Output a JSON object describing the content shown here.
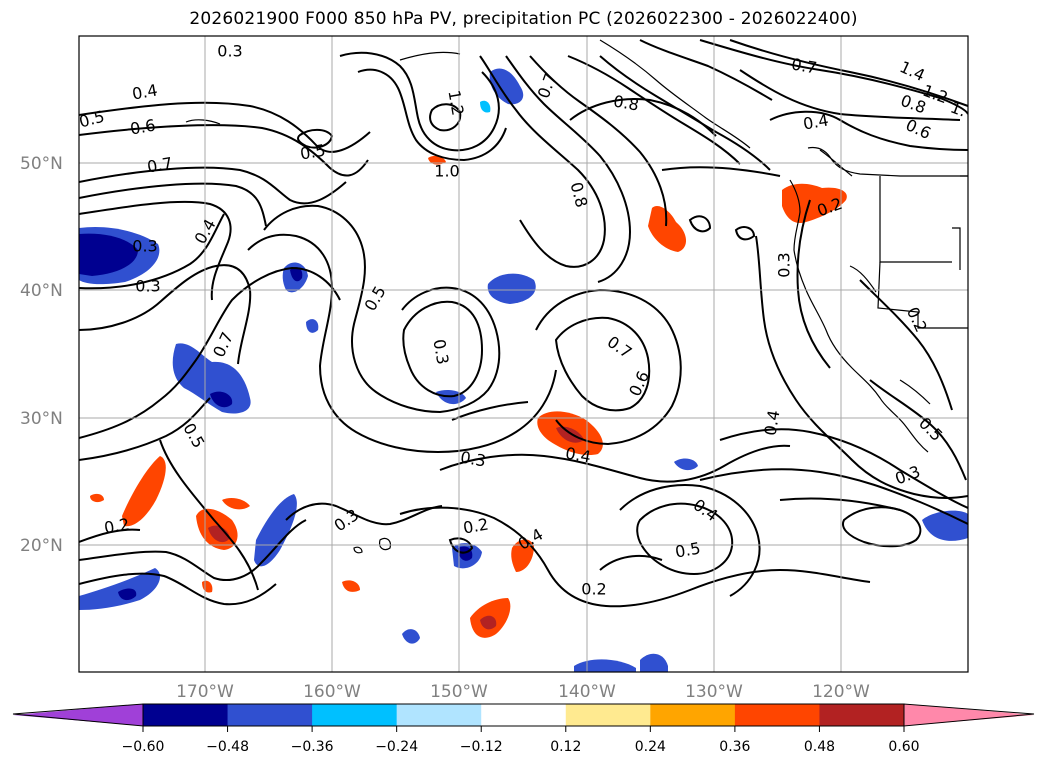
{
  "title": "2026021900 F000 850 hPa PV, precipitation PC (2026022300 - 2026022400)",
  "axes": {
    "lat_labels": [
      "50°N",
      "40°N",
      "30°N",
      "20°N"
    ],
    "lon_labels": [
      "170°W",
      "160°W",
      "150°W",
      "140°W",
      "130°W",
      "120°W"
    ]
  },
  "colorbar": {
    "colors": [
      "#a040d8",
      "#000090",
      "#3050d0",
      "#00c0ff",
      "#b0e4ff",
      "#ffffff",
      "#ffea90",
      "#ffa500",
      "#ff4500",
      "#b22222",
      "#ff88aa"
    ],
    "tick_labels": [
      "−0.60",
      "−0.48",
      "−0.36",
      "−0.24",
      "−0.12",
      "0.12",
      "0.24",
      "0.36",
      "0.48",
      "0.60"
    ]
  },
  "contour_labels": [
    "0.3",
    "0.4",
    "0.5",
    "0.6",
    "0.7",
    "0.5",
    "1.2",
    "1.0",
    "0.7",
    "0.8",
    "0.8",
    "0.7",
    "1.4",
    "1.2",
    "1.",
    "0.8",
    "0.6",
    "0.4",
    "0.4",
    "0.3",
    "0.3",
    "0.7",
    "0.5",
    "0.5",
    "0.3",
    "0.7",
    "0.6",
    "0.2",
    "0.3",
    "0.2",
    "0.4",
    "0.3",
    "0.4",
    "0.5",
    "0.3",
    "0.2",
    "0.3",
    "0.2",
    "0.4",
    "0.4",
    "0.5",
    "0.2"
  ]
}
